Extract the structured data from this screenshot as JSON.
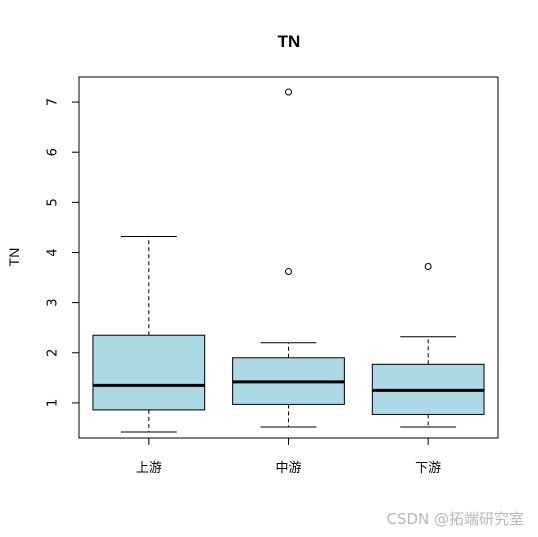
{
  "chart_data": {
    "type": "box",
    "title": "TN",
    "xlabel": "",
    "ylabel": "TN",
    "ylim": [
      0.3,
      7.5
    ],
    "yticks": [
      1,
      2,
      3,
      4,
      5,
      6,
      7
    ],
    "categories": [
      "上游",
      "中游",
      "下游"
    ],
    "box_color": "#ADD8E6",
    "boxes": [
      {
        "category": "上游",
        "whisker_low": 0.42,
        "q1": 0.86,
        "median": 1.35,
        "q3": 2.35,
        "whisker_high": 4.32,
        "outliers": []
      },
      {
        "category": "中游",
        "whisker_low": 0.52,
        "q1": 0.97,
        "median": 1.42,
        "q3": 1.9,
        "whisker_high": 2.2,
        "outliers": [
          3.62,
          7.2
        ]
      },
      {
        "category": "下游",
        "whisker_low": 0.52,
        "q1": 0.77,
        "median": 1.25,
        "q3": 1.77,
        "whisker_high": 2.32,
        "outliers": [
          3.72
        ]
      }
    ],
    "grid": false,
    "legend": "none"
  },
  "watermark": "CSDN @拓端研究室"
}
